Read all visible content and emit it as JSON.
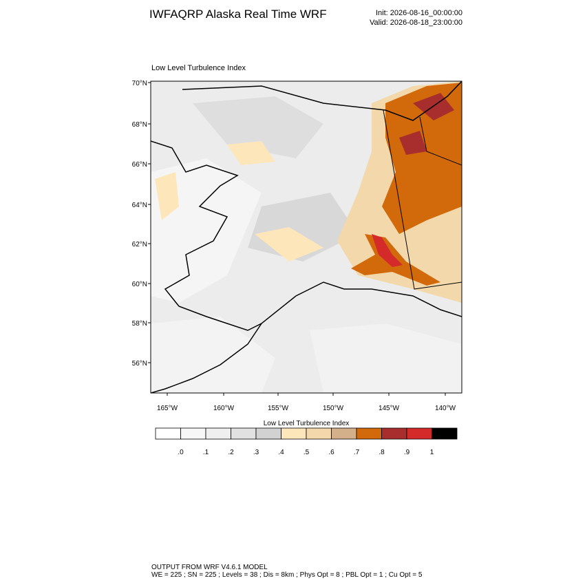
{
  "header": {
    "title": "IWFAQRP Alaska Real Time WRF",
    "init": "Init: 2026-08-16_00:00:00",
    "valid": "Valid: 2026-08-18_23:00:00"
  },
  "map": {
    "title": "Low Level Turbulence Index",
    "lat_labels": [
      "70°N",
      "68°N",
      "66°N",
      "64°N",
      "62°N",
      "60°N",
      "58°N",
      "56°N"
    ],
    "lon_labels": [
      "165°W",
      "160°W",
      "155°W",
      "150°W",
      "145°W",
      "140°W"
    ]
  },
  "colorbar": {
    "title": "Low Level Turbulence Index",
    "labels": [
      ".0",
      ".1",
      ".2",
      ".3",
      ".4",
      ".5",
      ".6",
      ".7",
      ".8",
      ".9",
      "1"
    ],
    "colors": [
      "#ffffff",
      "#f7f7f7",
      "#efefef",
      "#e1e1e1",
      "#d2d2d2",
      "#fde6ba",
      "#f2d8aa",
      "#d4b08a",
      "#d2690a",
      "#a82e2e",
      "#d42a2a",
      "#000000"
    ]
  },
  "footer": {
    "line1": "OUTPUT FROM WRF V4.6.1 MODEL",
    "line2": "WE = 225 ; SN = 225 ; Levels = 38 ; Dis = 8km ; Phys Opt = 8 ; PBL Opt = 1 ; Cu Opt = 5"
  }
}
